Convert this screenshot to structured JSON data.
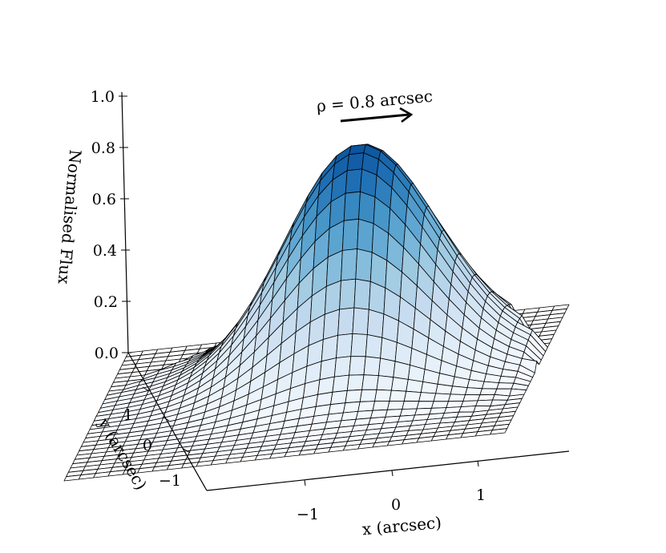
{
  "chart_data": {
    "type": "surface3d",
    "zlabel": "Normalised Flux",
    "xlabel": "x (arcsec)",
    "ylabel": "y (arcsec)",
    "zlim": [
      0.0,
      1.0
    ],
    "xlim": [
      -1.8,
      1.8
    ],
    "ylim": [
      -1.8,
      1.8
    ],
    "z_ticks": [
      "0.0",
      "0.2",
      "0.4",
      "0.6",
      "0.8",
      "1.0"
    ],
    "x_ticks": [
      "−1",
      "0",
      "1"
    ],
    "y_ticks": [
      "−1",
      "0",
      "1"
    ],
    "annotation": "ρ = 0.8 arcsec",
    "surface": {
      "profile": "gaussian",
      "peak_flux": 0.87,
      "peak_x": 0.3,
      "peak_y": 0.6,
      "sigma_arcsec": 0.62,
      "aperture_radius_arcsec": 0.8,
      "colormap": "Blues"
    },
    "grid": false
  },
  "colors": {
    "line": "#000000",
    "surface_low": "#deebf7",
    "surface_high": "#08306b"
  }
}
